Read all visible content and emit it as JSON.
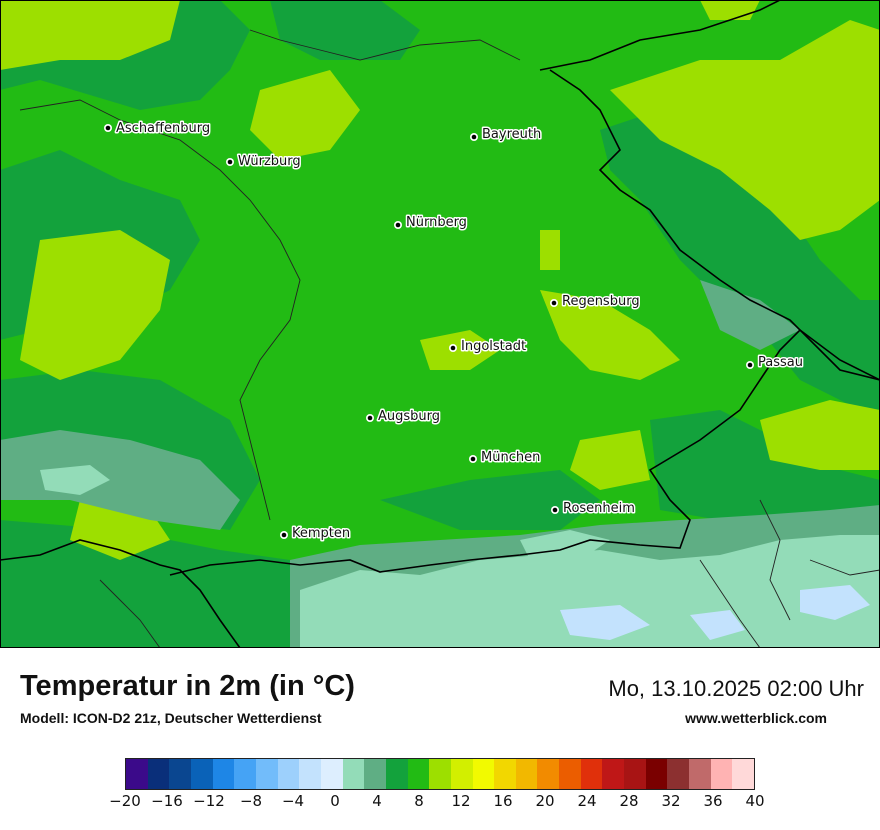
{
  "header": {
    "title": "Temperatur in 2m (in °C)",
    "model": "Modell: ICON-D2 21z, Deutscher Wetterdienst",
    "datetime": "Mo, 13.10.2025 02:00 Uhr",
    "website": "www.wetterblick.com"
  },
  "cities": [
    {
      "name": "Aschaffenburg"
    },
    {
      "name": "Bayreuth"
    },
    {
      "name": "Würzburg"
    },
    {
      "name": "Nürnberg"
    },
    {
      "name": "Regensburg"
    },
    {
      "name": "Ingolstadt"
    },
    {
      "name": "Passau"
    },
    {
      "name": "Augsburg"
    },
    {
      "name": "München"
    },
    {
      "name": "Rosenheim"
    },
    {
      "name": "Kempten"
    }
  ],
  "legend": {
    "ticks": [
      "−20",
      "−16",
      "−12",
      "−8",
      "−4",
      "0",
      "4",
      "8",
      "12",
      "16",
      "20",
      "24",
      "28",
      "32",
      "36",
      "40"
    ],
    "colors": [
      "#3b0a8a",
      "#0a2f7a",
      "#0a4690",
      "#0a62b8",
      "#1e86e6",
      "#45a3f5",
      "#72bcfa",
      "#9dd0fc",
      "#c3e2fd",
      "#ddeefe",
      "#93dcb8",
      "#5fae84",
      "#13a23c",
      "#22bb14",
      "#9ddf00",
      "#d2ef00",
      "#f2fa00",
      "#f2d700",
      "#f2b800",
      "#f28b00",
      "#eb5d00",
      "#e0300b",
      "#bf1717",
      "#a81414",
      "#7a0000",
      "#8c3030",
      "#c06a6a",
      "#ffb3b3",
      "#ffd9d9"
    ]
  },
  "colors": {
    "dark_green": "#13a23c",
    "green": "#22bb14",
    "lime": "#9ddf00",
    "teal": "#5fae84",
    "mint": "#93dcb8",
    "pale": "#c3e2fd"
  }
}
